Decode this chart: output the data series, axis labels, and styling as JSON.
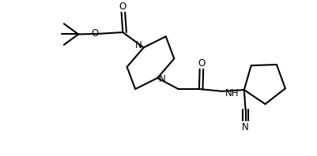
{
  "background_color": "#ffffff",
  "line_color": "#000000",
  "line_width": 1.5,
  "font_size": 8.5,
  "figsize": [
    4.02,
    1.98
  ],
  "dpi": 100,
  "xlim": [
    0,
    10.5
  ],
  "ylim": [
    0,
    5.5
  ]
}
